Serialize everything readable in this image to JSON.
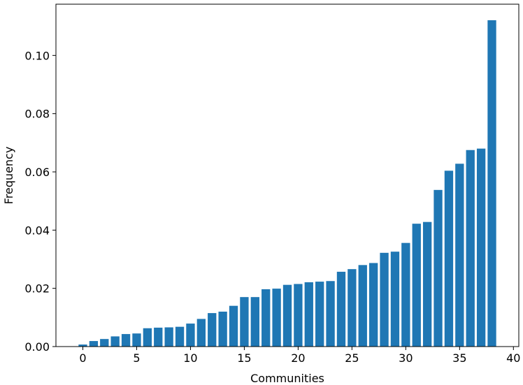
{
  "chart_data": {
    "type": "bar",
    "xlabel": "Communities",
    "ylabel": "Frequency",
    "xlim": [
      -2.5,
      40.5
    ],
    "ylim": [
      0,
      0.1176
    ],
    "xticks": [
      0,
      5,
      10,
      15,
      20,
      25,
      30,
      35,
      40
    ],
    "xtick_labels": [
      "0",
      "5",
      "10",
      "15",
      "20",
      "25",
      "30",
      "35",
      "40"
    ],
    "yticks": [
      0,
      0.02,
      0.04,
      0.06,
      0.08,
      0.1
    ],
    "ytick_labels": [
      "0.00",
      "0.02",
      "0.04",
      "0.06",
      "0.08",
      "0.10"
    ],
    "bar_color": "#1f77b4",
    "grid": false,
    "categories": [
      0,
      1,
      2,
      3,
      4,
      5,
      6,
      7,
      8,
      9,
      10,
      11,
      12,
      13,
      14,
      15,
      16,
      17,
      18,
      19,
      20,
      21,
      22,
      23,
      24,
      25,
      26,
      27,
      28,
      29,
      30,
      31,
      32,
      33,
      34,
      35,
      36,
      37,
      38
    ],
    "values": [
      0.0007,
      0.0019,
      0.0026,
      0.0035,
      0.0043,
      0.0045,
      0.0063,
      0.0065,
      0.0066,
      0.0068,
      0.0079,
      0.0095,
      0.0115,
      0.012,
      0.014,
      0.017,
      0.017,
      0.0197,
      0.0199,
      0.0212,
      0.0215,
      0.0221,
      0.0223,
      0.0225,
      0.0257,
      0.0266,
      0.028,
      0.0287,
      0.0322,
      0.0326,
      0.0356,
      0.0422,
      0.0428,
      0.0538,
      0.0604,
      0.0628,
      0.0675,
      0.068,
      0.1121
    ]
  }
}
